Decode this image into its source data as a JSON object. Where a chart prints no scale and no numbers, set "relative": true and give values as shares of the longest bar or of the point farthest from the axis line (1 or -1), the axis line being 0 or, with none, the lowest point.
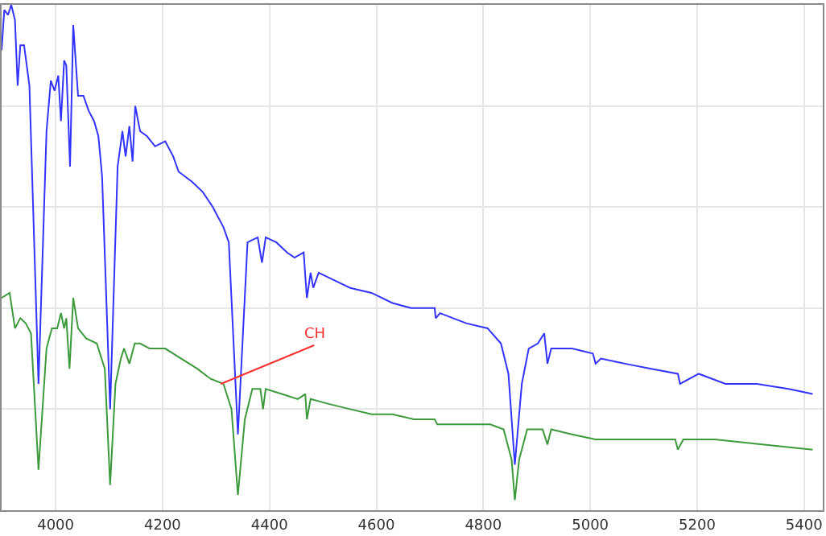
{
  "chart_data": {
    "type": "line",
    "relative": true,
    "xlim": [
      3899,
      5435
    ],
    "xticks": [
      4000,
      4200,
      4400,
      4600,
      4800,
      5000,
      5200,
      5400
    ],
    "grid": true,
    "tick_labels": "x",
    "marker": "none",
    "line_style": "solid",
    "annotations": [
      {
        "text": "CH",
        "x": 4309,
        "y": 0.25
      }
    ],
    "series": [
      {
        "color": "#3333ff",
        "x": [
          3899,
          3904,
          3911,
          3917,
          3924,
          3929,
          3934,
          3941,
          3946,
          3951,
          3968,
          3983,
          3991,
          3998,
          4005,
          4010,
          4016,
          4020,
          4027,
          4033,
          4042,
          4052,
          4062,
          4072,
          4080,
          4087,
          4102,
          4116,
          4125,
          4131,
          4138,
          4144,
          4149,
          4158,
          4171,
          4186,
          4205,
          4220,
          4230,
          4255,
          4275,
          4294,
          4314,
          4324,
          4341,
          4359,
          4378,
          4386,
          4393,
          4413,
          4433,
          4447,
          4464,
          4470,
          4477,
          4482,
          4492,
          4531,
          4551,
          4591,
          4630,
          4665,
          4709,
          4711,
          4719,
          4768,
          4808,
          4833,
          4847,
          4859,
          4872,
          4885,
          4902,
          4914,
          4920,
          4927,
          4966,
          5005,
          5010,
          5020,
          5065,
          5114,
          5164,
          5168,
          5203,
          5253,
          5312,
          5371,
          5416
        ],
        "values": [
          0.91,
          0.99,
          0.98,
          1.0,
          0.97,
          0.84,
          0.92,
          0.92,
          0.88,
          0.84,
          0.25,
          0.75,
          0.85,
          0.83,
          0.86,
          0.77,
          0.89,
          0.88,
          0.68,
          0.96,
          0.82,
          0.82,
          0.79,
          0.77,
          0.74,
          0.66,
          0.2,
          0.68,
          0.75,
          0.7,
          0.76,
          0.69,
          0.8,
          0.75,
          0.74,
          0.72,
          0.73,
          0.7,
          0.67,
          0.65,
          0.63,
          0.6,
          0.56,
          0.53,
          0.15,
          0.53,
          0.54,
          0.49,
          0.54,
          0.53,
          0.51,
          0.5,
          0.51,
          0.42,
          0.47,
          0.44,
          0.47,
          0.45,
          0.44,
          0.43,
          0.41,
          0.4,
          0.4,
          0.38,
          0.39,
          0.37,
          0.36,
          0.33,
          0.27,
          0.09,
          0.25,
          0.32,
          0.33,
          0.35,
          0.29,
          0.32,
          0.32,
          0.31,
          0.29,
          0.3,
          0.29,
          0.28,
          0.27,
          0.25,
          0.27,
          0.25,
          0.25,
          0.24,
          0.23
        ]
      },
      {
        "color": "#3c9a3c",
        "x": [
          3899,
          3914,
          3924,
          3934,
          3944,
          3954,
          3968,
          3983,
          3993,
          4003,
          4010,
          4016,
          4020,
          4026,
          4033,
          4042,
          4057,
          4077,
          4092,
          4102,
          4112,
          4122,
          4128,
          4138,
          4148,
          4158,
          4176,
          4205,
          4235,
          4265,
          4290,
          4314,
          4329,
          4341,
          4354,
          4368,
          4383,
          4388,
          4393,
          4423,
          4453,
          4467,
          4470,
          4477,
          4512,
          4551,
          4591,
          4630,
          4670,
          4709,
          4714,
          4768,
          4813,
          4838,
          4853,
          4859,
          4867,
          4882,
          4911,
          4920,
          4927,
          4966,
          5010,
          5035,
          5104,
          5159,
          5164,
          5174,
          5233,
          5322,
          5416
        ],
        "values": [
          0.42,
          0.43,
          0.36,
          0.38,
          0.37,
          0.35,
          0.08,
          0.32,
          0.36,
          0.36,
          0.39,
          0.36,
          0.38,
          0.28,
          0.42,
          0.36,
          0.34,
          0.33,
          0.28,
          0.05,
          0.25,
          0.3,
          0.32,
          0.29,
          0.33,
          0.33,
          0.32,
          0.32,
          0.3,
          0.28,
          0.26,
          0.25,
          0.2,
          0.03,
          0.18,
          0.24,
          0.24,
          0.2,
          0.24,
          0.23,
          0.22,
          0.23,
          0.18,
          0.22,
          0.21,
          0.2,
          0.19,
          0.19,
          0.18,
          0.18,
          0.17,
          0.17,
          0.17,
          0.16,
          0.1,
          0.02,
          0.1,
          0.16,
          0.16,
          0.13,
          0.16,
          0.15,
          0.14,
          0.14,
          0.14,
          0.14,
          0.12,
          0.14,
          0.14,
          0.13,
          0.12
        ]
      }
    ]
  }
}
